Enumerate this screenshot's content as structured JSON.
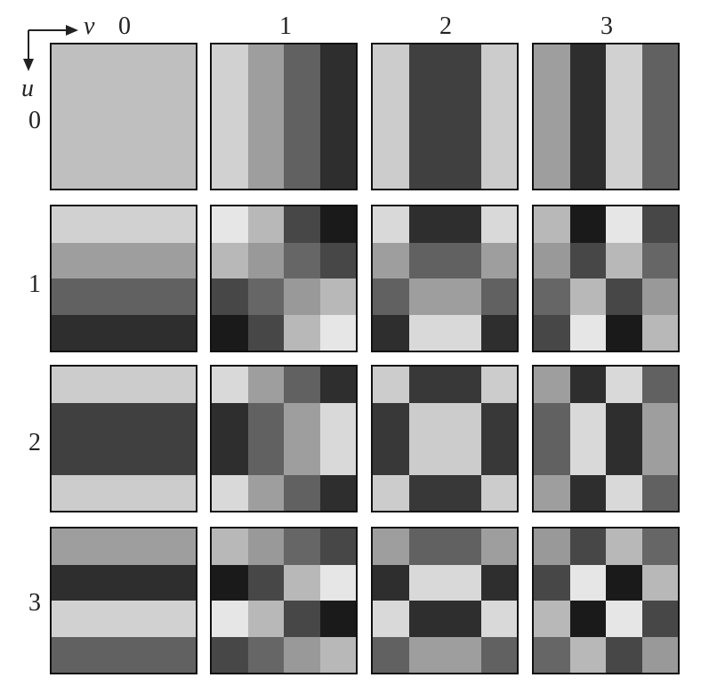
{
  "axes": {
    "horizontal_label": "v",
    "vertical_label": "u"
  },
  "column_labels": [
    "0",
    "1",
    "2",
    "3"
  ],
  "row_labels": [
    "0",
    "1",
    "2",
    "3"
  ],
  "basis_images": [
    [
      {
        "u": 0,
        "v": 0,
        "gray": [
          [
            0.75,
            0.75,
            0.75,
            0.75
          ],
          [
            0.75,
            0.75,
            0.75,
            0.75
          ],
          [
            0.75,
            0.75,
            0.75,
            0.75
          ],
          [
            0.75,
            0.75,
            0.75,
            0.75
          ]
        ]
      },
      {
        "u": 0,
        "v": 1,
        "gray": [
          [
            0.82,
            0.62,
            0.38,
            0.18
          ],
          [
            0.82,
            0.62,
            0.38,
            0.18
          ],
          [
            0.82,
            0.62,
            0.38,
            0.18
          ],
          [
            0.82,
            0.62,
            0.38,
            0.18
          ]
        ]
      },
      {
        "u": 0,
        "v": 2,
        "gray": [
          [
            0.8,
            0.25,
            0.25,
            0.8
          ],
          [
            0.8,
            0.25,
            0.25,
            0.8
          ],
          [
            0.8,
            0.25,
            0.25,
            0.8
          ],
          [
            0.8,
            0.25,
            0.25,
            0.8
          ]
        ]
      },
      {
        "u": 0,
        "v": 3,
        "gray": [
          [
            0.62,
            0.18,
            0.82,
            0.38
          ],
          [
            0.62,
            0.18,
            0.82,
            0.38
          ],
          [
            0.62,
            0.18,
            0.82,
            0.38
          ],
          [
            0.62,
            0.18,
            0.82,
            0.38
          ]
        ]
      }
    ],
    [
      {
        "u": 1,
        "v": 0,
        "gray": [
          [
            0.82,
            0.82,
            0.82,
            0.82
          ],
          [
            0.62,
            0.62,
            0.62,
            0.62
          ],
          [
            0.38,
            0.38,
            0.38,
            0.38
          ],
          [
            0.18,
            0.18,
            0.18,
            0.18
          ]
        ]
      },
      {
        "u": 1,
        "v": 1,
        "gray": [
          [
            0.9,
            0.72,
            0.28,
            0.1
          ],
          [
            0.72,
            0.6,
            0.4,
            0.28
          ],
          [
            0.28,
            0.4,
            0.6,
            0.72
          ],
          [
            0.1,
            0.28,
            0.72,
            0.9
          ]
        ]
      },
      {
        "u": 1,
        "v": 2,
        "gray": [
          [
            0.85,
            0.18,
            0.18,
            0.85
          ],
          [
            0.62,
            0.38,
            0.38,
            0.62
          ],
          [
            0.38,
            0.62,
            0.62,
            0.38
          ],
          [
            0.18,
            0.85,
            0.85,
            0.18
          ]
        ]
      },
      {
        "u": 1,
        "v": 3,
        "gray": [
          [
            0.72,
            0.1,
            0.9,
            0.28
          ],
          [
            0.6,
            0.28,
            0.72,
            0.4
          ],
          [
            0.4,
            0.72,
            0.28,
            0.6
          ],
          [
            0.28,
            0.9,
            0.1,
            0.72
          ]
        ]
      }
    ],
    [
      {
        "u": 2,
        "v": 0,
        "gray": [
          [
            0.8,
            0.8,
            0.8,
            0.8
          ],
          [
            0.25,
            0.25,
            0.25,
            0.25
          ],
          [
            0.25,
            0.25,
            0.25,
            0.25
          ],
          [
            0.8,
            0.8,
            0.8,
            0.8
          ]
        ]
      },
      {
        "u": 2,
        "v": 1,
        "gray": [
          [
            0.85,
            0.62,
            0.38,
            0.18
          ],
          [
            0.18,
            0.38,
            0.62,
            0.85
          ],
          [
            0.18,
            0.38,
            0.62,
            0.85
          ],
          [
            0.85,
            0.62,
            0.38,
            0.18
          ]
        ]
      },
      {
        "u": 2,
        "v": 2,
        "gray": [
          [
            0.8,
            0.22,
            0.22,
            0.8
          ],
          [
            0.22,
            0.8,
            0.8,
            0.22
          ],
          [
            0.22,
            0.8,
            0.8,
            0.22
          ],
          [
            0.8,
            0.22,
            0.22,
            0.8
          ]
        ]
      },
      {
        "u": 2,
        "v": 3,
        "gray": [
          [
            0.62,
            0.18,
            0.85,
            0.38
          ],
          [
            0.38,
            0.85,
            0.18,
            0.62
          ],
          [
            0.38,
            0.85,
            0.18,
            0.62
          ],
          [
            0.62,
            0.18,
            0.85,
            0.38
          ]
        ]
      }
    ],
    [
      {
        "u": 3,
        "v": 0,
        "gray": [
          [
            0.62,
            0.62,
            0.62,
            0.62
          ],
          [
            0.18,
            0.18,
            0.18,
            0.18
          ],
          [
            0.82,
            0.82,
            0.82,
            0.82
          ],
          [
            0.38,
            0.38,
            0.38,
            0.38
          ]
        ]
      },
      {
        "u": 3,
        "v": 1,
        "gray": [
          [
            0.72,
            0.6,
            0.4,
            0.28
          ],
          [
            0.1,
            0.28,
            0.72,
            0.9
          ],
          [
            0.9,
            0.72,
            0.28,
            0.1
          ],
          [
            0.28,
            0.4,
            0.6,
            0.72
          ]
        ]
      },
      {
        "u": 3,
        "v": 2,
        "gray": [
          [
            0.62,
            0.38,
            0.38,
            0.62
          ],
          [
            0.18,
            0.85,
            0.85,
            0.18
          ],
          [
            0.85,
            0.18,
            0.18,
            0.85
          ],
          [
            0.38,
            0.62,
            0.62,
            0.38
          ]
        ]
      },
      {
        "u": 3,
        "v": 3,
        "gray": [
          [
            0.6,
            0.28,
            0.72,
            0.4
          ],
          [
            0.28,
            0.9,
            0.1,
            0.72
          ],
          [
            0.72,
            0.1,
            0.9,
            0.28
          ],
          [
            0.4,
            0.72,
            0.28,
            0.6
          ]
        ]
      }
    ]
  ]
}
